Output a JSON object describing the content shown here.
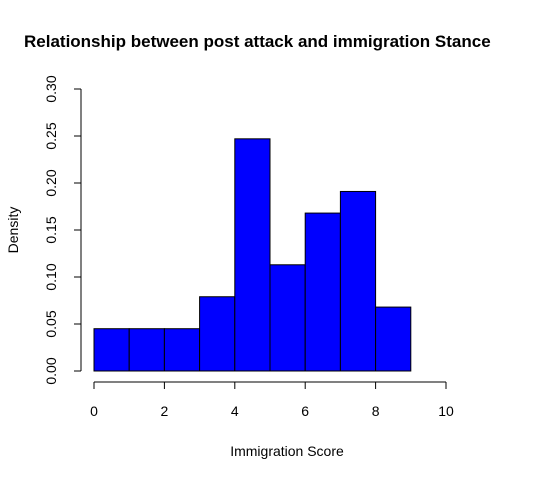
{
  "chart_data": {
    "type": "bar",
    "title": "Relationship between post attack and immigration Stance",
    "xlabel": "Immigration Score",
    "ylabel": "Density",
    "xlim": [
      0,
      10
    ],
    "ylim": [
      0,
      0.3
    ],
    "x_ticks": [
      "0",
      "2",
      "4",
      "6",
      "8",
      "10"
    ],
    "y_ticks": [
      "0.00",
      "0.05",
      "0.10",
      "0.15",
      "0.20",
      "0.25",
      "0.30"
    ],
    "bins": [
      {
        "start": 0,
        "end": 1,
        "density": 0.045
      },
      {
        "start": 1,
        "end": 2,
        "density": 0.045
      },
      {
        "start": 2,
        "end": 3,
        "density": 0.045
      },
      {
        "start": 3,
        "end": 4,
        "density": 0.079
      },
      {
        "start": 4,
        "end": 5,
        "density": 0.247
      },
      {
        "start": 5,
        "end": 6,
        "density": 0.113
      },
      {
        "start": 6,
        "end": 7,
        "density": 0.168
      },
      {
        "start": 7,
        "end": 8,
        "density": 0.191
      },
      {
        "start": 8,
        "end": 9,
        "density": 0.068
      }
    ],
    "bar_color": "#0000ff",
    "bar_edge_color": "#000000",
    "grid": false,
    "legend": "none"
  }
}
